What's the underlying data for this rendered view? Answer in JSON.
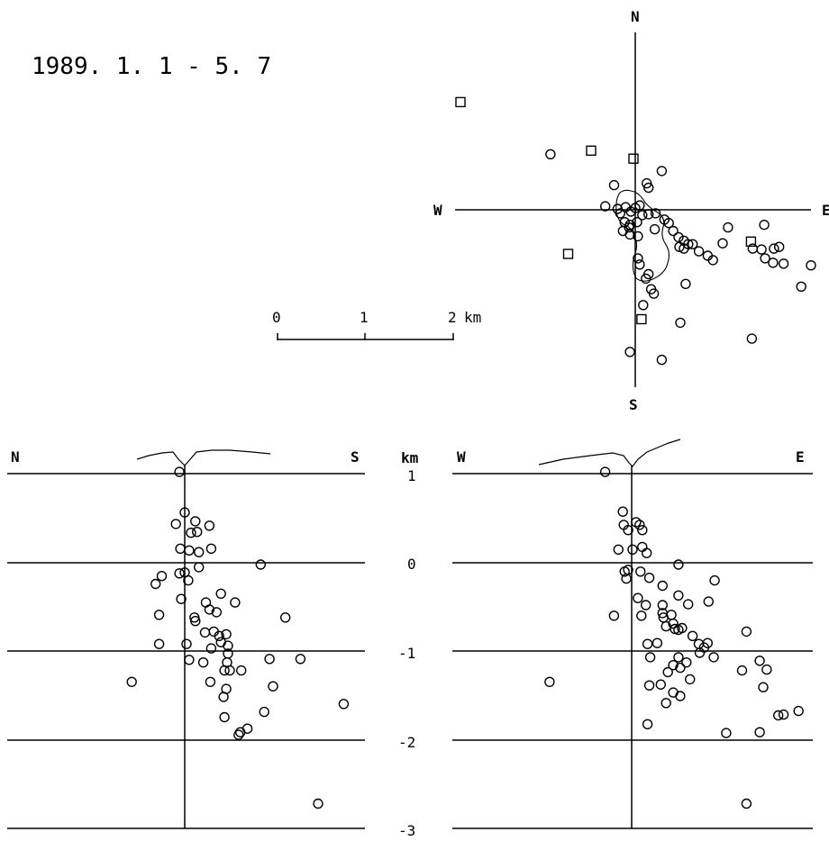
{
  "title": "1989. 1. 1 - 5. 7",
  "map": {
    "compass": {
      "north": "N",
      "south": "S",
      "west": "W",
      "east": "E"
    },
    "scale_bar": {
      "ticks": [
        "0",
        "1",
        "2"
      ],
      "unit": "km"
    },
    "circles_km": [
      [
        -0.96,
        0.63
      ],
      [
        0.3,
        0.44
      ],
      [
        0.13,
        0.3
      ],
      [
        0.15,
        0.25
      ],
      [
        -0.24,
        0.28
      ],
      [
        -0.34,
        0.04
      ],
      [
        -0.2,
        0.01
      ],
      [
        -0.11,
        0.03
      ],
      [
        0,
        0.02
      ],
      [
        0.05,
        0.05
      ],
      [
        -0.05,
        -0.02
      ],
      [
        0.08,
        -0.06
      ],
      [
        0.02,
        -0.14
      ],
      [
        -0.06,
        -0.17
      ],
      [
        -0.17,
        -0.04
      ],
      [
        0.15,
        -0.05
      ],
      [
        0.23,
        -0.04
      ],
      [
        0.33,
        -0.11
      ],
      [
        0.38,
        -0.15
      ],
      [
        0.43,
        -0.24
      ],
      [
        0.49,
        -0.31
      ],
      [
        0.55,
        -0.35
      ],
      [
        0.6,
        -0.39
      ],
      [
        0.5,
        -0.42
      ],
      [
        0.55,
        -0.44
      ],
      [
        0.65,
        -0.39
      ],
      [
        0.72,
        -0.47
      ],
      [
        0.82,
        -0.52
      ],
      [
        0.88,
        -0.57
      ],
      [
        -0.12,
        -0.14
      ],
      [
        -0.07,
        -0.2
      ],
      [
        -0.14,
        -0.24
      ],
      [
        -0.06,
        -0.28
      ],
      [
        0.03,
        -0.3
      ],
      [
        0.15,
        -0.73
      ],
      [
        0.12,
        -0.78
      ],
      [
        0.18,
        -0.9
      ],
      [
        0.21,
        -0.95
      ],
      [
        0.09,
        -1.08
      ],
      [
        0.57,
        -0.84
      ],
      [
        0.51,
        -1.28
      ],
      [
        -0.06,
        -1.61
      ],
      [
        0.3,
        -1.7
      ],
      [
        1.32,
        -1.46
      ],
      [
        1.33,
        -0.44
      ],
      [
        1.47,
        -0.55
      ],
      [
        1.43,
        -0.45
      ],
      [
        1.57,
        -0.44
      ],
      [
        1.63,
        -0.42
      ],
      [
        1.56,
        -0.6
      ],
      [
        1.68,
        -0.61
      ],
      [
        1.46,
        -0.17
      ],
      [
        1.88,
        -0.87
      ],
      [
        0.99,
        -0.38
      ],
      [
        1.99,
        -0.63
      ],
      [
        1.05,
        -0.2
      ],
      [
        0.05,
        -0.62
      ],
      [
        0.03,
        -0.55
      ],
      [
        0.22,
        -0.22
      ]
    ],
    "squares_km": [
      [
        -1.98,
        1.22
      ],
      [
        -0.5,
        0.67
      ],
      [
        -0.02,
        0.58
      ],
      [
        1.31,
        -0.36
      ],
      [
        -0.76,
        -0.5
      ],
      [
        0.07,
        -1.24
      ]
    ]
  },
  "ns_section": {
    "title_left": "N",
    "title_right": "S",
    "unit": "km",
    "y_ticks": [
      "1",
      "0",
      "-1",
      "-2",
      "-3"
    ],
    "circles_km": [
      [
        -0.06,
        1.03
      ],
      [
        0,
        0.57
      ],
      [
        -0.1,
        0.44
      ],
      [
        0.12,
        0.47
      ],
      [
        0.14,
        0.35
      ],
      [
        0.07,
        0.34
      ],
      [
        0.28,
        0.42
      ],
      [
        -0.05,
        0.16
      ],
      [
        0.05,
        0.14
      ],
      [
        0.16,
        0.12
      ],
      [
        0.3,
        0.16
      ],
      [
        0.86,
        -0.02
      ],
      [
        -0.26,
        -0.15
      ],
      [
        -0.33,
        -0.24
      ],
      [
        -0.06,
        -0.12
      ],
      [
        0,
        -0.11
      ],
      [
        0.04,
        -0.2
      ],
      [
        0.16,
        -0.05
      ],
      [
        0.11,
        -0.62
      ],
      [
        0.41,
        -0.35
      ],
      [
        0.57,
        -0.45
      ],
      [
        -0.04,
        -0.41
      ],
      [
        0.24,
        -0.45
      ],
      [
        0.28,
        -0.53
      ],
      [
        0.36,
        -0.56
      ],
      [
        -0.29,
        -0.59
      ],
      [
        0.12,
        -0.66
      ],
      [
        1.14,
        -0.62
      ],
      [
        0.05,
        -1.1
      ],
      [
        0.23,
        -0.79
      ],
      [
        0.33,
        -0.78
      ],
      [
        0.39,
        -0.83
      ],
      [
        0.47,
        -0.81
      ],
      [
        0.41,
        -0.9
      ],
      [
        0.49,
        -0.94
      ],
      [
        0.3,
        -0.97
      ],
      [
        0.02,
        -0.92
      ],
      [
        -0.29,
        -0.92
      ],
      [
        0.21,
        -1.13
      ],
      [
        0.49,
        -1.03
      ],
      [
        0.48,
        -1.13
      ],
      [
        0.45,
        -1.22
      ],
      [
        0.51,
        -1.22
      ],
      [
        0.64,
        -1.22
      ],
      [
        0.96,
        -1.09
      ],
      [
        1.31,
        -1.09
      ],
      [
        0.29,
        -1.35
      ],
      [
        0.47,
        -1.43
      ],
      [
        0.44,
        -1.52
      ],
      [
        1.0,
        -1.4
      ],
      [
        0.45,
        -1.75
      ],
      [
        0.9,
        -1.69
      ],
      [
        -0.6,
        -1.35
      ],
      [
        0.71,
        -1.88
      ],
      [
        0.63,
        -1.92
      ],
      [
        0.61,
        -1.95
      ],
      [
        1.8,
        -1.6
      ],
      [
        1.51,
        -2.73
      ]
    ]
  },
  "we_section": {
    "title_left": "W",
    "title_right": "E",
    "circles_km": [
      [
        -0.3,
        1.03
      ],
      [
        -0.1,
        0.58
      ],
      [
        -0.09,
        0.43
      ],
      [
        -0.04,
        0.37
      ],
      [
        0.05,
        0.46
      ],
      [
        0.09,
        0.43
      ],
      [
        0.12,
        0.37
      ],
      [
        -0.15,
        0.15
      ],
      [
        0.01,
        0.15
      ],
      [
        0.12,
        0.18
      ],
      [
        0.17,
        0.11
      ],
      [
        -0.04,
        -0.08
      ],
      [
        0.1,
        -0.1
      ],
      [
        0.2,
        -0.17
      ],
      [
        -0.06,
        -0.18
      ],
      [
        -0.08,
        -0.1
      ],
      [
        0.53,
        -0.02
      ],
      [
        0.94,
        -0.2
      ],
      [
        -0.2,
        -0.6
      ],
      [
        0.07,
        -0.4
      ],
      [
        0.35,
        -0.26
      ],
      [
        0.53,
        -0.37
      ],
      [
        0.64,
        -0.47
      ],
      [
        0.87,
        -0.44
      ],
      [
        0.35,
        -0.48
      ],
      [
        0.16,
        -0.48
      ],
      [
        0.11,
        -0.6
      ],
      [
        0.35,
        -0.57
      ],
      [
        0.36,
        -0.62
      ],
      [
        0.45,
        -0.59
      ],
      [
        0.47,
        -0.69
      ],
      [
        0.53,
        -0.76
      ],
      [
        0.39,
        -0.72
      ],
      [
        0.49,
        -0.75
      ],
      [
        0.57,
        -0.74
      ],
      [
        0.69,
        -0.83
      ],
      [
        0.76,
        -0.92
      ],
      [
        0.82,
        -0.96
      ],
      [
        0.86,
        -0.91
      ],
      [
        0.77,
        -1.02
      ],
      [
        1.3,
        -0.78
      ],
      [
        0.18,
        -0.92
      ],
      [
        0.29,
        -0.91
      ],
      [
        0.53,
        -1.07
      ],
      [
        0.93,
        -1.07
      ],
      [
        0.21,
        -1.07
      ],
      [
        0.47,
        -1.16
      ],
      [
        0.62,
        -1.13
      ],
      [
        0.41,
        -1.24
      ],
      [
        0.33,
        -1.38
      ],
      [
        0.55,
        -1.19
      ],
      [
        1.45,
        -1.11
      ],
      [
        1.53,
        -1.21
      ],
      [
        1.25,
        -1.22
      ],
      [
        1.49,
        -1.41
      ],
      [
        0.66,
        -1.32
      ],
      [
        0.47,
        -1.47
      ],
      [
        0.39,
        -1.59
      ],
      [
        1.66,
        -1.73
      ],
      [
        0.18,
        -1.83
      ],
      [
        1.07,
        -1.93
      ],
      [
        1.45,
        -1.92
      ],
      [
        1.72,
        -1.72
      ],
      [
        1.89,
        -1.68
      ],
      [
        -0.93,
        -1.35
      ],
      [
        1.3,
        -2.73
      ],
      [
        0.55,
        -1.51
      ],
      [
        0.2,
        -1.39
      ]
    ]
  }
}
